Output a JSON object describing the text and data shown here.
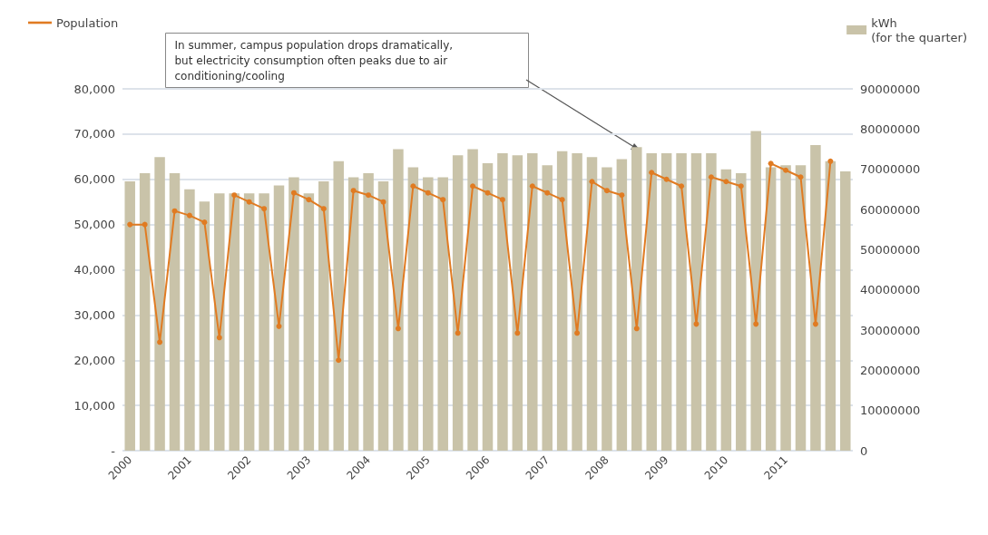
{
  "chart_data": {
    "type": "bar",
    "categories": [
      "2000",
      null,
      null,
      null,
      "2001",
      null,
      null,
      null,
      "2002",
      null,
      null,
      null,
      "2003",
      null,
      null,
      null,
      "2004",
      null,
      null,
      null,
      "2005",
      null,
      null,
      null,
      "2006",
      null,
      null,
      null,
      "2007",
      null,
      null,
      null,
      "2008",
      null,
      null,
      null,
      "2009",
      null,
      null,
      null,
      "2010",
      null,
      null,
      null,
      "2011",
      null,
      null,
      null,
      null
    ],
    "series": [
      {
        "name": "kWh\n(for the quarter)",
        "axis": "y2",
        "color": "#c9c3a9",
        "values": [
          67000000,
          69000000,
          73000000,
          69000000,
          65000000,
          62000000,
          64000000,
          64000000,
          64000000,
          64000000,
          66000000,
          68000000,
          64000000,
          67000000,
          72000000,
          68000000,
          69000000,
          67000000,
          75000000,
          70500000,
          68000000,
          68000000,
          73500000,
          75000000,
          71500000,
          74000000,
          73500000,
          74000000,
          71000000,
          74500000,
          74000000,
          73000000,
          70500000,
          72500000,
          75500000,
          74000000,
          74000000,
          74000000,
          74000000,
          74000000,
          70000000,
          69000000,
          79500000,
          70500000,
          71000000,
          71000000,
          76000000,
          72000000,
          69500000
        ]
      },
      {
        "name": "Population",
        "type": "line",
        "color": "#e07b22",
        "values": [
          50000,
          50000,
          24000,
          53000,
          52000,
          50500,
          25000,
          56500,
          55000,
          53500,
          27500,
          57000,
          55500,
          53500,
          20000,
          57500,
          56500,
          55000,
          27000,
          58500,
          57000,
          55500,
          26000,
          58500,
          57000,
          55500,
          26000,
          58500,
          57000,
          55500,
          26000,
          59500,
          57500,
          56500,
          27000,
          61500,
          60000,
          58500,
          28000,
          60500,
          59500,
          58500,
          28000,
          63500,
          62000,
          60500,
          28000,
          64000,
          null
        ]
      }
    ],
    "ylim": [
      0,
      80000
    ],
    "yticks": [
      {
        "value": 0,
        "label": "-"
      },
      {
        "value": 10000,
        "label": "10,000"
      },
      {
        "value": 20000,
        "label": "20,000"
      },
      {
        "value": 30000,
        "label": "30,000"
      },
      {
        "value": 40000,
        "label": "40,000"
      },
      {
        "value": 50000,
        "label": "50,000"
      },
      {
        "value": 60000,
        "label": "60,000"
      },
      {
        "value": 70000,
        "label": "70,000"
      },
      {
        "value": 80000,
        "label": "80,000"
      }
    ],
    "y2lim": [
      0,
      90000000
    ],
    "y2ticks": [
      0,
      10000000,
      20000000,
      30000000,
      40000000,
      50000000,
      60000000,
      70000000,
      80000000,
      90000000
    ],
    "grid": "y",
    "legend": "top",
    "marker": "circle",
    "line_style": "solid",
    "annotations": [
      "In summer, campus population drops dramatically, but electricity consumption often peaks due to air conditioning/cooling"
    ]
  }
}
